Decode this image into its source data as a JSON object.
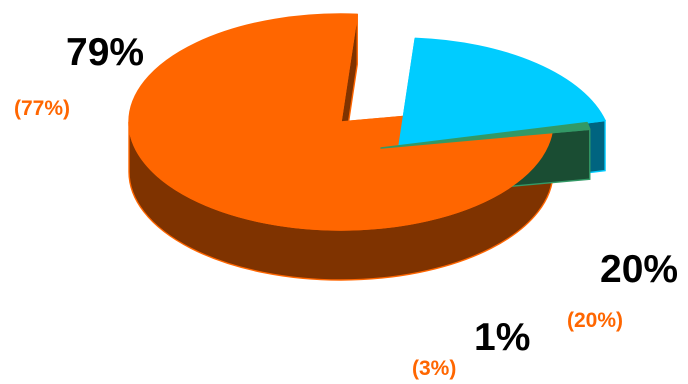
{
  "chart_data": {
    "type": "pie",
    "style": "3d-exploded",
    "slices": [
      {
        "key": "orange",
        "value": 79,
        "label": "79%",
        "secondary_label": "(77%)",
        "top_color": "#FF6600",
        "side_color": "#7F3300"
      },
      {
        "key": "cyan",
        "value": 20,
        "label": "20%",
        "secondary_label": "(20%)",
        "top_color": "#00CCFF",
        "side_color": "#006480"
      },
      {
        "key": "green",
        "value": 1,
        "label": "1%",
        "secondary_label": "(3%)",
        "top_color": "#339966",
        "side_color": "#1A4D33"
      }
    ],
    "secondary_label_color": "#FF6600",
    "legend": "none",
    "grid": false
  }
}
